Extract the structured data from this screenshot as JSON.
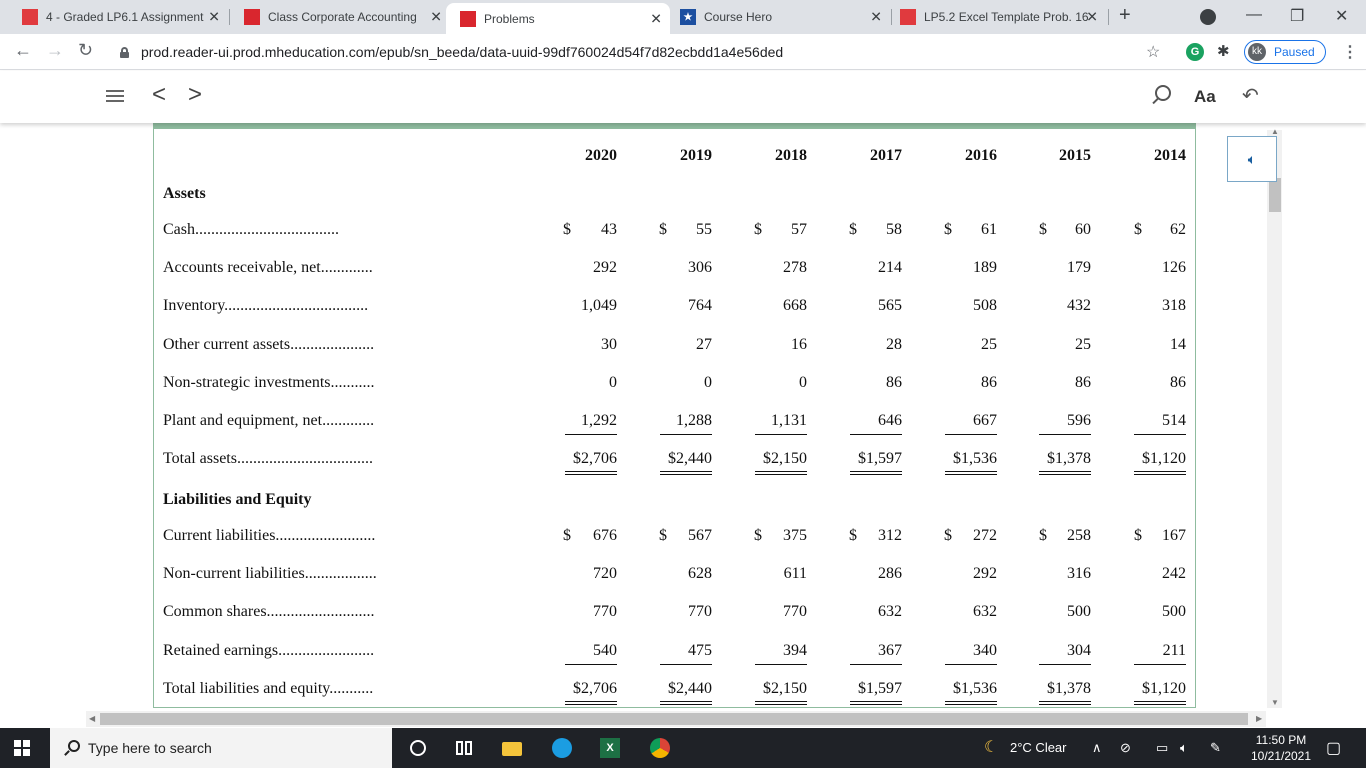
{
  "browser": {
    "tabs": [
      {
        "title": "4 - Graded LP6.1 Assignment",
        "favicon_color": "#e03a3e",
        "active": false
      },
      {
        "title": "Class Corporate Accounting",
        "favicon_color": "#d9262e",
        "active": false
      },
      {
        "title": "Problems",
        "favicon_color": "#d9262e",
        "active": true
      },
      {
        "title": "Course Hero",
        "favicon_color": "#1c4fa0",
        "active": false
      },
      {
        "title": "LP5.2 Excel Template Prob. 16",
        "favicon_color": "#e03a3e",
        "active": false
      }
    ],
    "url": "prod.reader-ui.prod.mheducation.com/epub/sn_beeda/data-uuid-99df760024d54f7d82ecbdd1a4e56ded",
    "profile_initials": "kk",
    "profile_status": "Paused"
  },
  "reader": {
    "text_size_label": "Aa"
  },
  "table": {
    "years": [
      "2020",
      "2019",
      "2018",
      "2017",
      "2016",
      "2015",
      "2014"
    ],
    "assets_heading": "Assets",
    "liabilities_heading": "Liabilities and Equity",
    "rows": [
      {
        "label": "Cash....................................",
        "values": [
          "43",
          "55",
          "57",
          "58",
          "61",
          "60",
          "62"
        ],
        "dollar": true
      },
      {
        "label": "Accounts receivable, net.............",
        "values": [
          "292",
          "306",
          "278",
          "214",
          "189",
          "179",
          "126"
        ]
      },
      {
        "label": "Inventory....................................",
        "values": [
          "1,049",
          "764",
          "668",
          "565",
          "508",
          "432",
          "318"
        ]
      },
      {
        "label": "Other current assets.....................",
        "values": [
          "30",
          "27",
          "16",
          "28",
          "25",
          "25",
          "14"
        ]
      },
      {
        "label": "Non-strategic investments...........",
        "values": [
          "0",
          "0",
          "0",
          "86",
          "86",
          "86",
          "86"
        ]
      },
      {
        "label": "Plant and equipment, net.............",
        "values": [
          "1,292",
          "1,288",
          "1,131",
          "646",
          "667",
          "596",
          "514"
        ],
        "underline": true
      },
      {
        "label": "Total assets..................................",
        "values": [
          "$2,706",
          "$2,440",
          "$2,150",
          "$1,597",
          "$1,536",
          "$1,378",
          "$1,120"
        ],
        "double": true
      },
      {
        "label": "Current liabilities.........................",
        "values": [
          "676",
          "567",
          "375",
          "312",
          "272",
          "258",
          "167"
        ],
        "dollar": true
      },
      {
        "label": "Non-current liabilities..................",
        "values": [
          "720",
          "628",
          "611",
          "286",
          "292",
          "316",
          "242"
        ]
      },
      {
        "label": "Common shares...........................",
        "values": [
          "770",
          "770",
          "770",
          "632",
          "632",
          "500",
          "500"
        ]
      },
      {
        "label": "Retained earnings........................",
        "values": [
          "540",
          "475",
          "394",
          "367",
          "340",
          "304",
          "211"
        ],
        "underline": true
      },
      {
        "label": "Total liabilities and equity...........",
        "values": [
          "$2,706",
          "$2,440",
          "$2,150",
          "$1,597",
          "$1,536",
          "$1,378",
          "$1,120"
        ],
        "double": true
      }
    ],
    "currency_symbol": "$"
  },
  "taskbar": {
    "search_placeholder": "Type here to search",
    "weather": "2°C  Clear",
    "time": "11:50 PM",
    "date": "10/21/2021"
  }
}
